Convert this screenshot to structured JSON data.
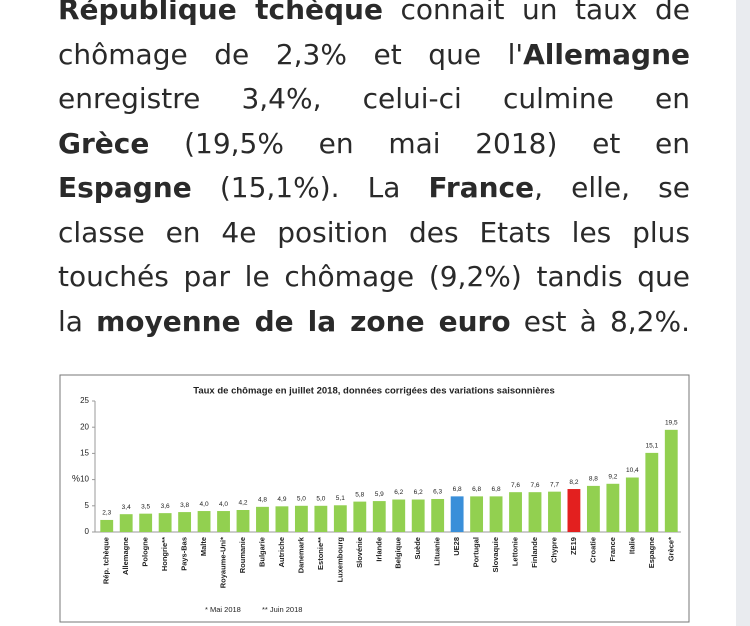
{
  "article": {
    "lines": [
      [
        {
          "text": "République tchèque",
          "bold": true
        },
        {
          "text": " connait un taux de",
          "bold": false
        }
      ],
      [
        {
          "text": "chômage de 2,3% et que l'",
          "bold": false
        },
        {
          "text": "Allemagne",
          "bold": true
        }
      ],
      [
        {
          "text": "enregistre 3,4%, celui-ci culmine en",
          "bold": false
        }
      ],
      [
        {
          "text": "Grèce",
          "bold": true
        },
        {
          "text": " (19,5% en mai 2018) et en",
          "bold": false
        }
      ],
      [
        {
          "text": "Espagne",
          "bold": true
        },
        {
          "text": " (15,1%). La ",
          "bold": false
        },
        {
          "text": "France",
          "bold": true
        },
        {
          "text": ", elle, se",
          "bold": false
        }
      ],
      [
        {
          "text": "classe en 4e position des Etats les plus",
          "bold": false
        }
      ],
      [
        {
          "text": "touchés par le chômage (9,2%) tandis que",
          "bold": false
        }
      ],
      [
        {
          "text": "la ",
          "bold": false
        },
        {
          "text": "moyenne de la zone euro",
          "bold": true
        },
        {
          "text": " est à 8,2%.",
          "bold": false
        }
      ]
    ]
  },
  "chart_data": {
    "type": "bar",
    "title": "Taux de chômage en juillet 2018, données corrigées des variations saisonnières",
    "y_label": "%",
    "categories": [
      "Rép. tchèque",
      "Allemagne",
      "Pologne",
      "Hongrie**",
      "Pays-Bas",
      "Malte",
      "Royaume-Uni*",
      "Roumanie",
      "Bulgarie",
      "Autriche",
      "Danemark",
      "Estonie**",
      "Luxembourg",
      "Slovénie",
      "Irlande",
      "Belgique",
      "Suède",
      "Lituanie",
      "UE28",
      "Portugal",
      "Slovaquie",
      "Lettonie",
      "Finlande",
      "Chypre",
      "ZE19",
      "Croatie",
      "France",
      "Italie",
      "Espagne",
      "Grèce*"
    ],
    "values": [
      2.3,
      3.4,
      3.5,
      3.6,
      3.8,
      4.0,
      4.0,
      4.2,
      4.8,
      4.9,
      5.0,
      5.0,
      5.1,
      5.8,
      5.9,
      6.2,
      6.2,
      6.3,
      6.8,
      6.8,
      6.8,
      7.6,
      7.6,
      7.7,
      8.2,
      8.8,
      9.2,
      10.4,
      15.1,
      19.5
    ],
    "value_labels": [
      "2,3",
      "3,4",
      "3,5",
      "3,6",
      "3,8",
      "4,0",
      "4,0",
      "4,2",
      "4,8",
      "4,9",
      "5,0",
      "5,0",
      "5,1",
      "5,8",
      "5,9",
      "6,2",
      "6,2",
      "6,3",
      "6,8",
      "6,8",
      "6,8",
      "7,6",
      "7,6",
      "7,7",
      "8,2",
      "8,8",
      "9,2",
      "10,4",
      "15,1",
      "19,5"
    ],
    "colors": [
      "#92d050",
      "#92d050",
      "#92d050",
      "#92d050",
      "#92d050",
      "#92d050",
      "#92d050",
      "#92d050",
      "#92d050",
      "#92d050",
      "#92d050",
      "#92d050",
      "#92d050",
      "#92d050",
      "#92d050",
      "#92d050",
      "#92d050",
      "#92d050",
      "#3a8fd9",
      "#92d050",
      "#92d050",
      "#92d050",
      "#92d050",
      "#92d050",
      "#e3201f",
      "#92d050",
      "#92d050",
      "#92d050",
      "#92d050",
      "#92d050"
    ],
    "ylim": [
      0,
      25
    ],
    "yticks": [
      0,
      5,
      10,
      15,
      20,
      25
    ],
    "grid": false,
    "footnotes": [
      "* Mai 2018",
      "** Juin 2018"
    ]
  }
}
